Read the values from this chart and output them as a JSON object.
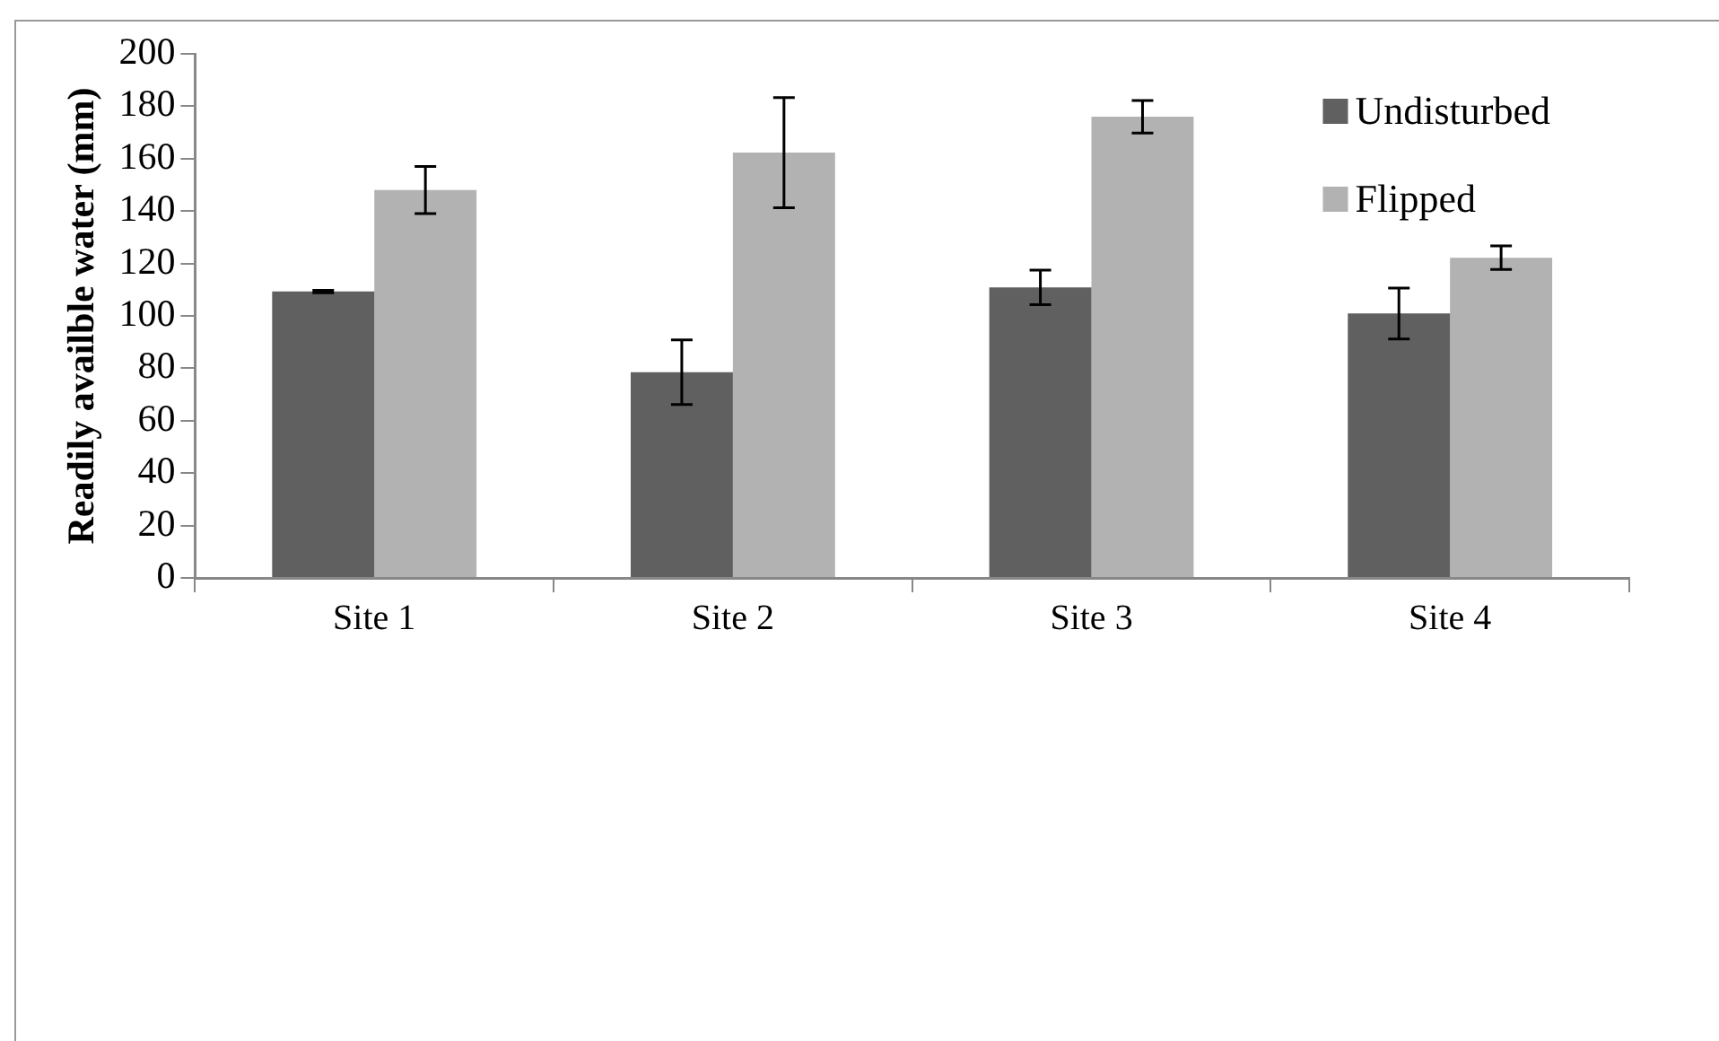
{
  "chart_data": {
    "type": "bar",
    "ylabel": "Readily availble water (mm)",
    "categories": [
      "Site 1",
      "Site 2",
      "Site 3",
      "Site 4"
    ],
    "series": [
      {
        "name": "Undisturbed",
        "color": "#606060",
        "values": [
          109.3,
          78.5,
          110.9,
          100.9
        ],
        "errors": [
          0.5,
          12.3,
          6.6,
          9.7
        ]
      },
      {
        "name": "Flipped",
        "color": "#b2b2b2",
        "values": [
          148,
          162.3,
          176,
          122.2
        ],
        "errors": [
          9,
          21,
          6.2,
          4.5
        ]
      }
    ],
    "ylim": [
      0,
      200
    ],
    "yticks": [
      0,
      20,
      40,
      60,
      80,
      100,
      120,
      140,
      160,
      180,
      200
    ],
    "grid": false,
    "legend": "top right"
  }
}
